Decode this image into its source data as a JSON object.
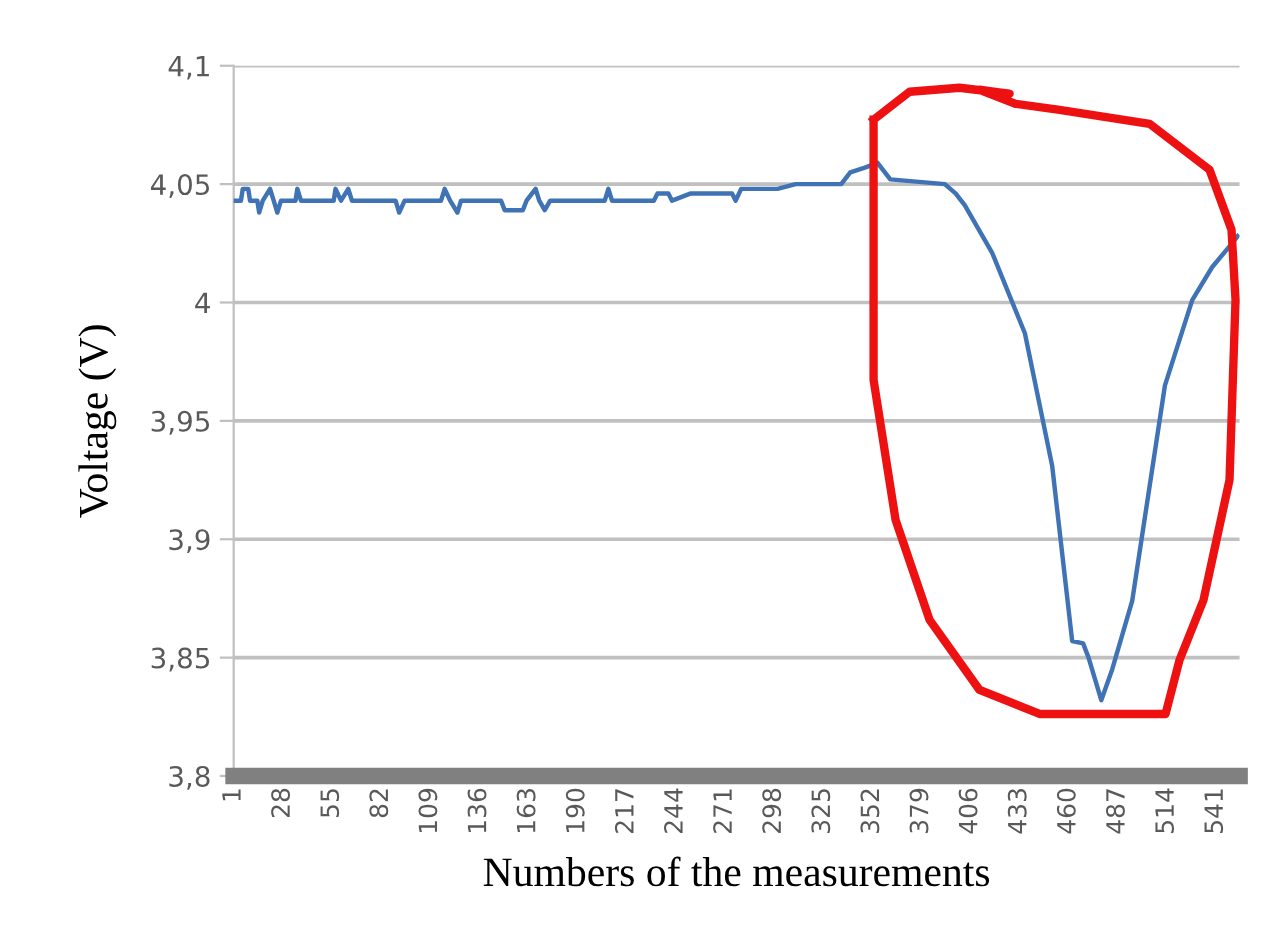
{
  "chart_data": {
    "type": "line",
    "xlabel": "Numbers of the measurements",
    "ylabel": "Voltage (V)",
    "x": [
      1,
      5,
      6,
      9,
      10,
      14,
      15,
      17,
      21,
      23,
      25,
      27,
      35,
      36,
      38,
      56,
      57,
      60,
      64,
      66,
      90,
      92,
      95,
      115,
      117,
      120,
      124,
      126,
      148,
      150,
      160,
      162,
      167,
      169,
      172,
      175,
      205,
      207,
      209,
      232,
      234,
      240,
      242,
      252,
      275,
      277,
      280,
      300,
      310,
      335,
      340,
      348,
      355,
      362,
      392,
      398,
      403,
      418,
      436,
      451,
      462,
      468,
      471,
      478,
      484,
      495,
      513,
      528,
      539,
      551,
      553
    ],
    "series": [
      {
        "color": "#3f73b5",
        "values": [
          4.043,
          4.043,
          4.048,
          4.048,
          4.043,
          4.043,
          4.038,
          4.043,
          4.048,
          4.043,
          4.038,
          4.043,
          4.043,
          4.048,
          4.043,
          4.043,
          4.048,
          4.043,
          4.048,
          4.043,
          4.043,
          4.038,
          4.043,
          4.043,
          4.048,
          4.043,
          4.038,
          4.043,
          4.043,
          4.039,
          4.039,
          4.043,
          4.048,
          4.043,
          4.039,
          4.043,
          4.043,
          4.048,
          4.043,
          4.043,
          4.046,
          4.046,
          4.043,
          4.046,
          4.046,
          4.043,
          4.048,
          4.048,
          4.05,
          4.05,
          4.055,
          4.057,
          4.059,
          4.052,
          4.05,
          4.046,
          4.041,
          4.021,
          3.987,
          3.931,
          3.857,
          3.856,
          3.85,
          3.832,
          3.845,
          3.874,
          3.965,
          4.001,
          4.015,
          4.026,
          4.028
        ]
      }
    ],
    "xlim": [
      1,
      554
    ],
    "xticks": [
      1,
      28,
      55,
      82,
      109,
      136,
      163,
      190,
      217,
      244,
      271,
      298,
      325,
      352,
      379,
      406,
      433,
      460,
      487,
      514,
      541
    ],
    "ylim": [
      3.8,
      4.1
    ],
    "yticks": [
      {
        "value": 3.8,
        "label": "3,8"
      },
      {
        "value": 3.85,
        "label": "3,85"
      },
      {
        "value": 3.9,
        "label": "3,9"
      },
      {
        "value": 3.95,
        "label": "3,95"
      },
      {
        "value": 4.0,
        "label": "4"
      },
      {
        "value": 4.05,
        "label": "4,05"
      },
      {
        "value": 4.1,
        "label": "4,1"
      }
    ],
    "grid": "y",
    "marker": "none",
    "line_style": "solid"
  }
}
